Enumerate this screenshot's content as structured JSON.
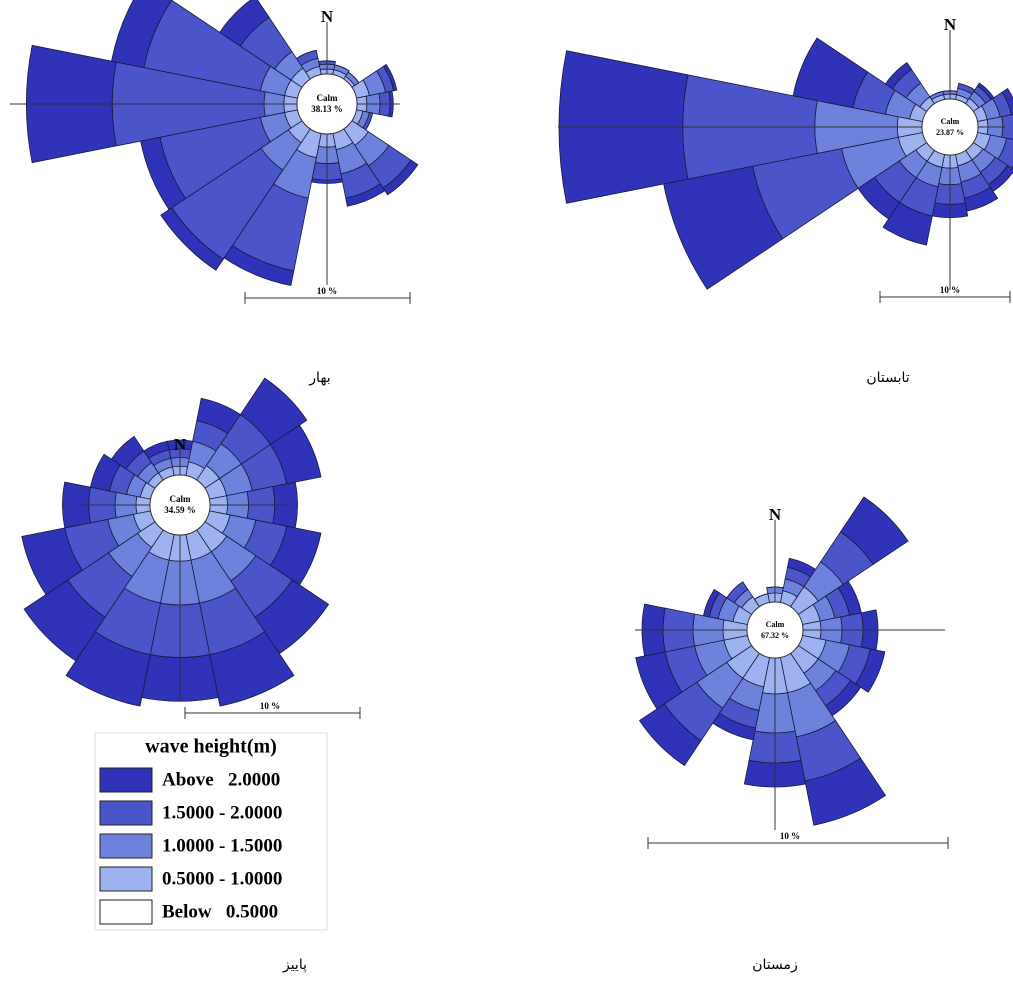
{
  "chart_data": [
    {
      "type": "rose",
      "title": "بهار",
      "north_label": "N",
      "scale_label": "10 %",
      "calm": {
        "label": "Calm",
        "value": 38.13,
        "value_label": "38.13 %"
      },
      "series": [
        {
          "values": [
            0.3,
            0.3,
            0.2,
            0.8,
            0.6,
            0.4,
            1.2,
            1.0,
            0.8,
            1.5,
            1.0,
            0.8,
            0.8,
            0.8,
            0.8,
            0.5
          ]
        },
        {
          "values": [
            0.3,
            0.3,
            0.3,
            1.0,
            0.8,
            0.4,
            1.5,
            1.5,
            1.0,
            2.5,
            2.0,
            1.5,
            1.2,
            1.5,
            1.2,
            0.5
          ]
        },
        {
          "values": [
            0.2,
            0,
            0,
            0.5,
            0.6,
            0.2,
            1.6,
            1.5,
            1.0,
            4.5,
            6.5,
            6.2,
            9.2,
            7.2,
            2.5,
            0.5
          ]
        },
        {
          "values": [
            0,
            0,
            0,
            0.2,
            0.2,
            0,
            0.5,
            0.5,
            0.2,
            0.9,
            0.8,
            1.2,
            5.2,
            2.0,
            1.5,
            0
          ]
        }
      ]
    },
    {
      "type": "rose",
      "title": "تابستان",
      "north_label": "N",
      "scale_label": "10 %",
      "calm": {
        "label": "Calm",
        "value": 23.87,
        "value_label": "23.87 %"
      },
      "series": [
        {
          "values": [
            0.3,
            0.3,
            0.4,
            0.6,
            0.6,
            0.8,
            0.7,
            0.7,
            0.8,
            0.8,
            0.8,
            1.5,
            1.5,
            0.8,
            0.5,
            0.3
          ]
        },
        {
          "values": [
            0.2,
            0.4,
            0.5,
            0.8,
            0.9,
            1.0,
            0.9,
            1.0,
            1.0,
            1.2,
            1.2,
            3.5,
            5.0,
            1.5,
            1.0,
            0.2
          ]
        },
        {
          "values": [
            0,
            0.3,
            0.4,
            0.7,
            0.8,
            1.0,
            0.9,
            1.0,
            1.2,
            1.8,
            1.8,
            5.5,
            8.0,
            2.0,
            1.0,
            0
          ]
        },
        {
          "values": [
            0,
            0,
            0.2,
            0.4,
            0.5,
            0.7,
            0.5,
            0.8,
            0.8,
            1.8,
            1.2,
            5.5,
            7.5,
            3.7,
            0.5,
            0
          ]
        }
      ]
    },
    {
      "type": "rose",
      "title": "پاییز",
      "north_label": "N",
      "scale_label": "10 %",
      "calm": {
        "label": "Calm",
        "value": 34.59,
        "value_label": "34.59 %"
      },
      "series": [
        {
          "values": [
            0.5,
            0.8,
            1.0,
            1.0,
            1.0,
            1.2,
            1.5,
            1.5,
            1.5,
            1.5,
            1.2,
            1.0,
            0.8,
            0.6,
            0.5,
            0.5
          ]
        },
        {
          "values": [
            0.5,
            1.2,
            1.5,
            1.5,
            1.2,
            1.5,
            2.0,
            2.5,
            2.5,
            2.5,
            2.0,
            1.5,
            1.2,
            0.8,
            0.7,
            0.5
          ]
        },
        {
          "values": [
            0.5,
            1.2,
            2.0,
            2.0,
            1.5,
            1.8,
            2.5,
            3.0,
            3.0,
            3.0,
            2.8,
            2.5,
            1.5,
            1.0,
            0.8,
            0.5
          ]
        },
        {
          "values": [
            0.5,
            1.3,
            2.5,
            2.0,
            1.3,
            2.0,
            2.5,
            3.0,
            2.5,
            3.0,
            3.0,
            2.5,
            1.5,
            1.1,
            1.0,
            0.5
          ]
        }
      ]
    },
    {
      "type": "rose",
      "title": "زمستان",
      "north_label": "N",
      "scale_label": "10 %",
      "calm": {
        "label": "Calm",
        "value": 67.32,
        "value_label": "67.32 %"
      },
      "series": [
        {
          "values": [
            0.3,
            0.4,
            0.8,
            0.6,
            0.6,
            0.8,
            0.8,
            1.2,
            1.2,
            1.0,
            1.0,
            0.8,
            0.8,
            0.5,
            0.4,
            0.3
          ]
        },
        {
          "values": [
            0.2,
            0.4,
            1.0,
            0.5,
            0.7,
            0.8,
            0.7,
            1.5,
            1.3,
            0.8,
            1.2,
            1.0,
            1.0,
            0.5,
            0.3,
            0
          ]
        },
        {
          "values": [
            0,
            0.4,
            1.2,
            0.5,
            0.7,
            0.7,
            0.6,
            1.5,
            1.0,
            0.6,
            1.3,
            1.0,
            1.0,
            0.3,
            0.3,
            0
          ]
        },
        {
          "values": [
            0,
            0.3,
            1.4,
            0.4,
            0.5,
            0.5,
            0.4,
            1.5,
            0.8,
            0.4,
            1.0,
            1.0,
            0.7,
            0.2,
            0,
            0
          ]
        }
      ]
    }
  ],
  "legend": {
    "title": "wave height(m)",
    "items": [
      {
        "name": "Above   2.0000",
        "color": "#2f33b8"
      },
      {
        "name": "1.5000 - 2.0000",
        "color": "#4a55c9"
      },
      {
        "name": "1.0000 - 1.5000",
        "color": "#6d82dc"
      },
      {
        "name": "0.5000 - 1.0000",
        "color": "#9db3ef"
      },
      {
        "name": "Below   0.5000",
        "color": "#ffffff"
      }
    ]
  }
}
